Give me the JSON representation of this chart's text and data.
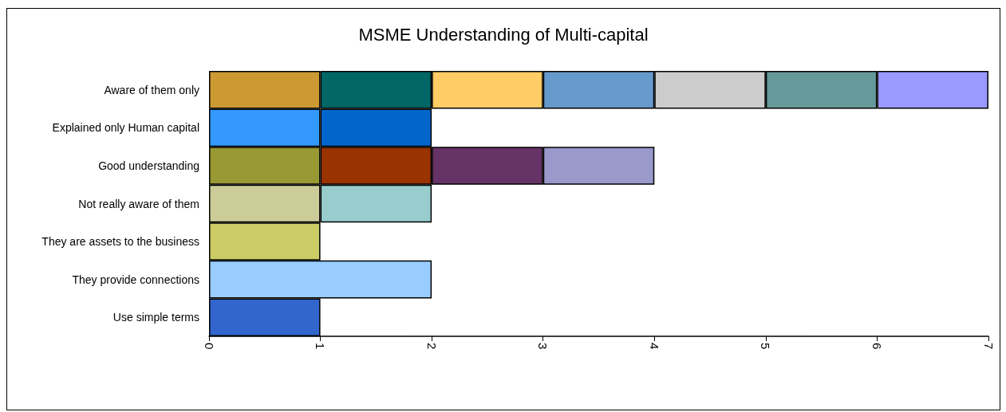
{
  "chart_data": {
    "type": "bar",
    "title": "MSME Understanding of Multi-capital",
    "orientation": "horizontal",
    "stacked": true,
    "grid": false,
    "categories": [
      "Aware of them only",
      "Explained only Human capital",
      "Good understanding",
      "Not really aware of them",
      "They are assets to the business",
      "They provide connections",
      "Use simple terms"
    ],
    "xlim": [
      0,
      7
    ],
    "xticks": [
      0,
      1,
      2,
      3,
      4,
      5,
      6,
      7
    ],
    "series": [
      {
        "values": [
          1,
          1,
          1,
          1,
          1,
          2,
          1
        ],
        "colors": [
          "#cc9933",
          "#3399ff",
          "#999933",
          "#cccc99",
          "#cccc66",
          "#99ccff",
          "#3366cc"
        ]
      },
      {
        "values": [
          1,
          1,
          1,
          1,
          null,
          null,
          null
        ],
        "colors": [
          "#006666",
          "#0066cc",
          "#993300",
          "#99cccc",
          null,
          null,
          null
        ]
      },
      {
        "values": [
          1,
          null,
          1,
          null,
          null,
          null,
          null
        ],
        "colors": [
          "#ffcc66",
          null,
          "#663366",
          null,
          null,
          null,
          null
        ]
      },
      {
        "values": [
          1,
          null,
          1,
          null,
          null,
          null,
          null
        ],
        "colors": [
          "#6699cc",
          null,
          "#9999cc",
          null,
          null,
          null,
          null
        ]
      },
      {
        "values": [
          1,
          null,
          null,
          null,
          null,
          null,
          null
        ],
        "colors": [
          "#cccccc",
          null,
          null,
          null,
          null,
          null,
          null
        ]
      },
      {
        "values": [
          1,
          null,
          null,
          null,
          null,
          null,
          null
        ],
        "colors": [
          "#669999",
          null,
          null,
          null,
          null,
          null,
          null
        ]
      },
      {
        "values": [
          1,
          null,
          null,
          null,
          null,
          null,
          null
        ],
        "colors": [
          "#9999ff",
          null,
          null,
          null,
          null,
          null,
          null
        ]
      }
    ]
  }
}
